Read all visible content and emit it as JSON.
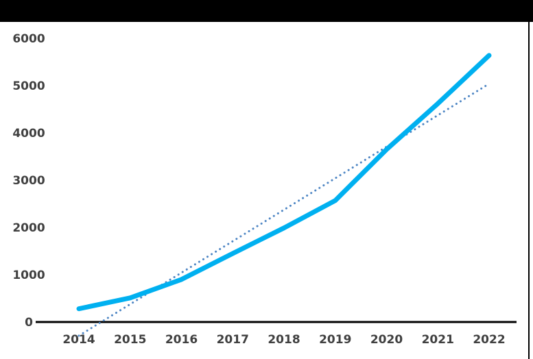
{
  "frame": {
    "top_bar_color": "#000000",
    "right_border_color": "#000000",
    "background_color": "#ffffff"
  },
  "chart_data": {
    "type": "line",
    "title": "",
    "xlabel": "",
    "ylabel": "",
    "categories": [
      "2014",
      "2015",
      "2016",
      "2017",
      "2018",
      "2019",
      "2020",
      "2021",
      "2022"
    ],
    "series": [
      {
        "name": "main-series",
        "color": "#00b0f0",
        "line_style": "solid",
        "values": [
          280,
          510,
          900,
          1450,
          1990,
          2570,
          3650,
          4620,
          5640
        ]
      }
    ],
    "trendline": {
      "name": "linear-trendline",
      "color": "#4e86c4",
      "line_style": "dotted",
      "start_category": "2014",
      "end_category": "2022",
      "start_value": -290,
      "end_value": 5040
    },
    "y_ticks": [
      0,
      1000,
      2000,
      3000,
      4000,
      5000,
      6000
    ],
    "ylim": [
      0,
      6000
    ],
    "grid": false,
    "legend": false,
    "axis_line_color": "#000000",
    "tick_label_color": "#404040"
  }
}
